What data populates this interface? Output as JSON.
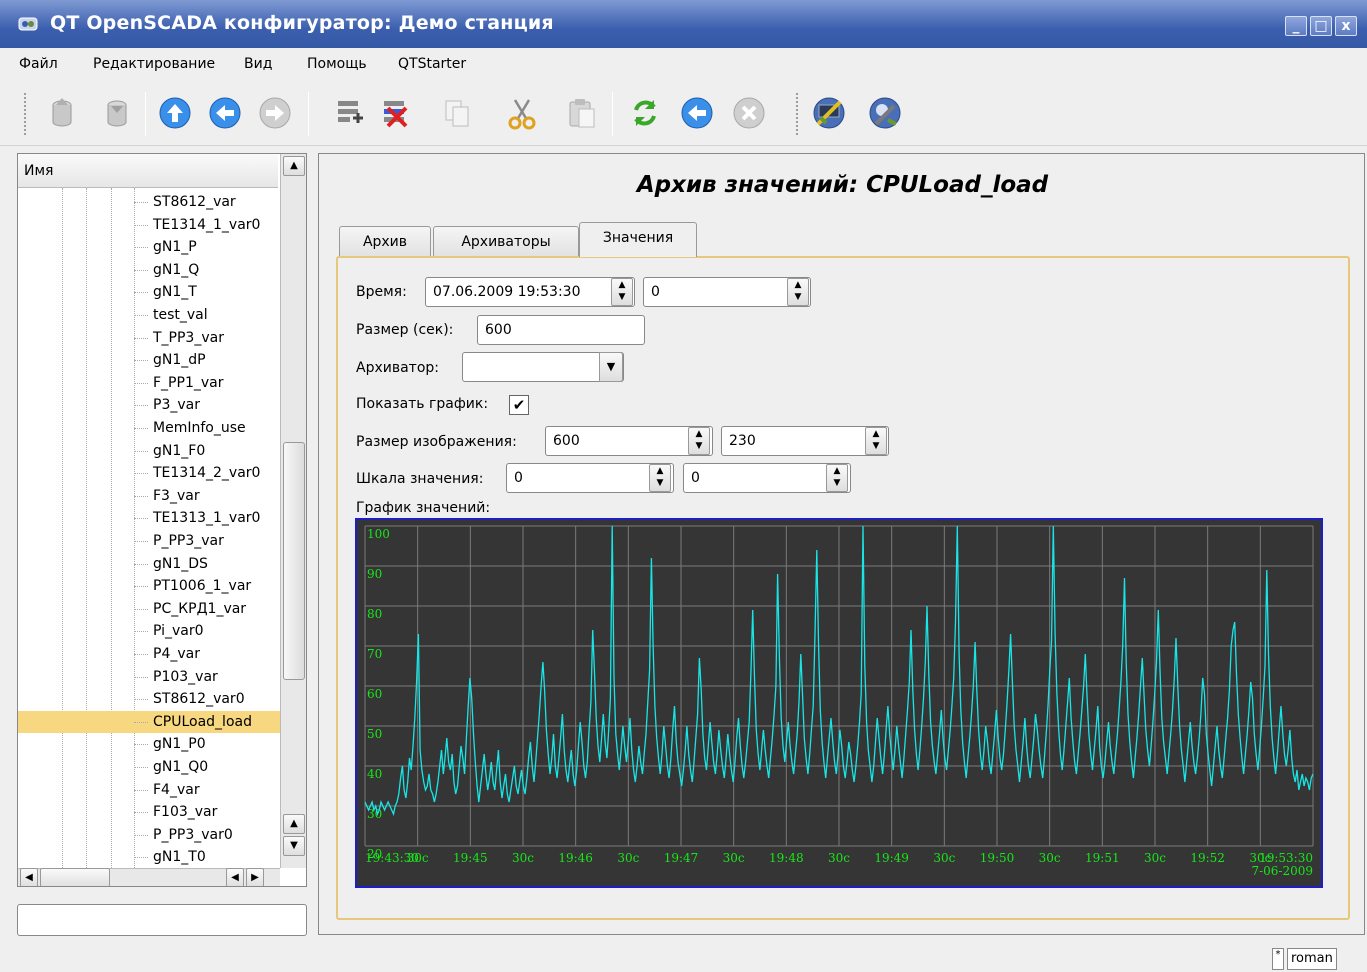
{
  "window": {
    "title": "QT OpenSCADA конфигуратор: Демо станция",
    "min_glyph": "_",
    "max_glyph": "□",
    "close_glyph": "x"
  },
  "menu": [
    "Файл",
    "Редактирование",
    "Вид",
    "Помощь",
    "QTStarter"
  ],
  "toolbar": {
    "icons": [
      "db-load-icon",
      "db-save-icon",
      "up-icon",
      "back-icon",
      "forward-icon",
      "add-item-icon",
      "delete-item-icon",
      "copy-icon",
      "cut-icon",
      "paste-icon",
      "refresh-icon",
      "start-icon",
      "stop-icon",
      "tool-1-icon",
      "tool-2-icon"
    ]
  },
  "tree": {
    "header": "Имя",
    "items": [
      "ST8612_var",
      "TE1314_1_var0",
      "gN1_P",
      "gN1_Q",
      "gN1_T",
      "test_val",
      "T_PP3_var",
      "gN1_dP",
      "F_PP1_var",
      "P3_var",
      "MemInfo_use",
      "gN1_F0",
      "TE1314_2_var0",
      "F3_var",
      "TE1313_1_var0",
      "P_PP3_var",
      "gN1_DS",
      "PT1006_1_var",
      "PC_КРД1_var",
      "Pi_var0",
      "P4_var",
      "P103_var",
      "ST8612_var0",
      "CPULoad_load",
      "gN1_P0",
      "gN1_Q0",
      "F4_var",
      "F103_var",
      "P_PP3_var0",
      "gN1_T0"
    ],
    "selected": "CPULoad_load"
  },
  "page": {
    "title": "Архив значений: CPULoad_load",
    "tabs": [
      "Архив",
      "Архиваторы",
      "Значения"
    ],
    "active_tab": "Значения"
  },
  "form": {
    "time_label": "Время:",
    "time_value": "07.06.2009 19:53:30",
    "time_usec": "0",
    "size_label": "Размер (сек):",
    "size_value": "600",
    "archiver_label": "Архиватор:",
    "archiver_value": "",
    "show_graph_label": "Показать график:",
    "show_graph_checked": "✔",
    "img_size_label": "Размер изображения:",
    "img_width": "600",
    "img_height": "230",
    "scale_label": "Шкала значения:",
    "scale_min": "0",
    "scale_max": "0",
    "graph_label": "График значений:"
  },
  "chart_data": {
    "type": "line",
    "title": "",
    "xlabel": "",
    "ylabel": "",
    "ylim": [
      20,
      100
    ],
    "y_ticks": [
      "100",
      "90",
      "80",
      "70",
      "60",
      "50",
      "40",
      "30",
      "20"
    ],
    "x_ticks": [
      "19:43:30",
      "30с",
      "19:45",
      "30с",
      "19:46",
      "30с",
      "19:47",
      "30с",
      "19:48",
      "30с",
      "19:49",
      "30с",
      "19:50",
      "30с",
      "19:51",
      "30с",
      "19:52",
      "30с",
      "19:53:30"
    ],
    "x_end_date": "7-06-2009",
    "grid": true,
    "background": "#353535",
    "line_color": "#18e6e6",
    "grid_color": "#7a7a7a",
    "tick_color": "#18e618",
    "series": [
      {
        "values": [
          31,
          30,
          29,
          30,
          31,
          29,
          30,
          28,
          29,
          31,
          30,
          29,
          30,
          31,
          30,
          29,
          28,
          30,
          31,
          33,
          37,
          40,
          34,
          32,
          36,
          42,
          39,
          45,
          52,
          61,
          73,
          44,
          39,
          36,
          34,
          35,
          38,
          34,
          33,
          31,
          33,
          36,
          40,
          44,
          38,
          42,
          47,
          41,
          39,
          43,
          36,
          33,
          35,
          40,
          45,
          42,
          38,
          47,
          55,
          62,
          57,
          48,
          41,
          35,
          31,
          35,
          39,
          43,
          38,
          34,
          37,
          41,
          36,
          34,
          39,
          44,
          36,
          32,
          35,
          38,
          33,
          31,
          34,
          37,
          40,
          35,
          33,
          36,
          39,
          35,
          33,
          37,
          42,
          46,
          40,
          36,
          41,
          47,
          53,
          60,
          66,
          59,
          49,
          43,
          38,
          42,
          48,
          40,
          37,
          42,
          47,
          53,
          44,
          39,
          36,
          40,
          44,
          38,
          35,
          39,
          45,
          51,
          46,
          40,
          37,
          41,
          49,
          56,
          74,
          64,
          52,
          45,
          41,
          47,
          53,
          46,
          42,
          49,
          57,
          100,
          62,
          48,
          43,
          39,
          44,
          50,
          45,
          41,
          46,
          52,
          44,
          39,
          36,
          40,
          45,
          41,
          38,
          43,
          48,
          56,
          64,
          92,
          70,
          55,
          47,
          42,
          38,
          43,
          50,
          45,
          40,
          37,
          42,
          49,
          55,
          46,
          41,
          38,
          35,
          39,
          44,
          50,
          43,
          39,
          36,
          41,
          47,
          53,
          67,
          59,
          48,
          42,
          39,
          45,
          51,
          46,
          41,
          38,
          43,
          49,
          44,
          40,
          37,
          42,
          48,
          43,
          39,
          36,
          41,
          47,
          52,
          45,
          40,
          37,
          41,
          46,
          51,
          64,
          79,
          62,
          49,
          43,
          39,
          44,
          49,
          44,
          40,
          37,
          42,
          47,
          53,
          60,
          88,
          67,
          52,
          45,
          41,
          46,
          51,
          45,
          41,
          38,
          43,
          48,
          56,
          68,
          58,
          47,
          42,
          38,
          43,
          49,
          55,
          73,
          94,
          71,
          54,
          46,
          41,
          37,
          42,
          47,
          52,
          46,
          41,
          38,
          43,
          49,
          45,
          40,
          37,
          41,
          46,
          43,
          39,
          36,
          40,
          45,
          51,
          58,
          100,
          65,
          51,
          44,
          40,
          36,
          40,
          46,
          52,
          47,
          42,
          38,
          43,
          49,
          55,
          48,
          43,
          39,
          44,
          50,
          45,
          41,
          37,
          42,
          48,
          54,
          61,
          74,
          59,
          49,
          43,
          39,
          44,
          50,
          57,
          66,
          80,
          63,
          51,
          45,
          41,
          38,
          43,
          48,
          54,
          47,
          42,
          39,
          44,
          49,
          55,
          62,
          76,
          100,
          68,
          54,
          46,
          41,
          37,
          42,
          47,
          53,
          60,
          71,
          59,
          49,
          43,
          39,
          44,
          50,
          46,
          41,
          38,
          43,
          48,
          54,
          47,
          42,
          39,
          43,
          49,
          56,
          64,
          73,
          61,
          50,
          44,
          40,
          36,
          41,
          46,
          52,
          45,
          40,
          37,
          42,
          47,
          53,
          49,
          44,
          40,
          37,
          42,
          48,
          55,
          64,
          71,
          100,
          73,
          58,
          49,
          43,
          39,
          44,
          50,
          56,
          62,
          52,
          46,
          41,
          38,
          43,
          48,
          54,
          60,
          68,
          57,
          48,
          43,
          39,
          44,
          49,
          55,
          45,
          40,
          37,
          41,
          46,
          51,
          45,
          41,
          38,
          43,
          48,
          54,
          61,
          70,
          87,
          66,
          53,
          46,
          41,
          37,
          42,
          47,
          53,
          60,
          67,
          58,
          49,
          44,
          40,
          45,
          51,
          58,
          66,
          79,
          64,
          52,
          46,
          42,
          38,
          43,
          48,
          54,
          62,
          72,
          60,
          50,
          44,
          40,
          36,
          41,
          46,
          51,
          45,
          41,
          38,
          42,
          47,
          53,
          62,
          58,
          48,
          43,
          39,
          35,
          40,
          45,
          50,
          44,
          40,
          37,
          42,
          47,
          52,
          59,
          70,
          74,
          76,
          63,
          53,
          47,
          42,
          38,
          43,
          48,
          54,
          61,
          57,
          48,
          43,
          39,
          44,
          50,
          57,
          65,
          89,
          68,
          55,
          47,
          42,
          38,
          43,
          49,
          55,
          48,
          43,
          40,
          44,
          49,
          42,
          38,
          36,
          39,
          34,
          36,
          38,
          35,
          37,
          36,
          34,
          37,
          38
        ]
      }
    ]
  },
  "status": {
    "mark": "*",
    "user": "roman"
  }
}
